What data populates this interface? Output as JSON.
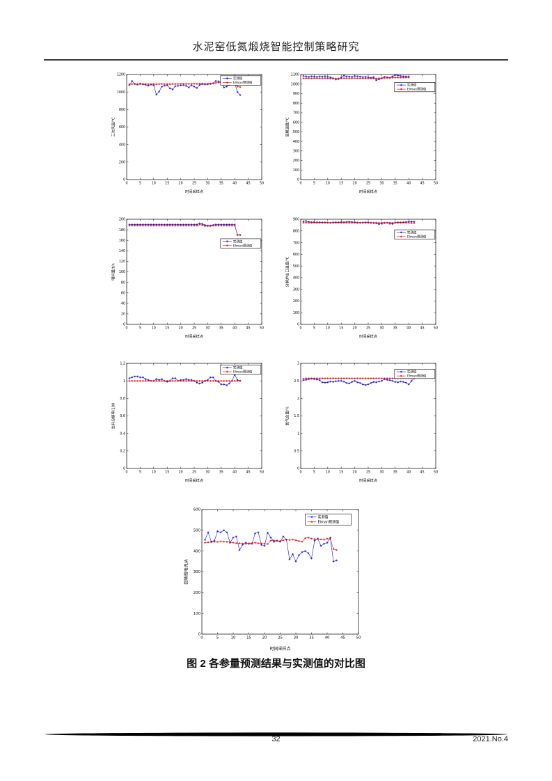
{
  "page": {
    "header_title": "水泥窑低氮煅烧智能控制策略研究",
    "caption": "图 2 各参量预测结果与实测值的对比图",
    "page_number": "32",
    "issue": "2021.No.4"
  },
  "colors": {
    "actual": "#0000ee",
    "predicted": "#ee0000",
    "axis": "#000000"
  },
  "chart_data": [
    {
      "type": "line",
      "name": "tertiary-air-temperature",
      "ylabel": "三次风温/℃",
      "xlabel": "时间采样点",
      "xlim": [
        0,
        50
      ],
      "xtick": 5,
      "ylim": [
        0,
        1200
      ],
      "ytick": 200,
      "grid": false,
      "legend_pos": [
        0.695,
        0.012
      ],
      "legend": [
        "实测值",
        "Elman预测值"
      ],
      "series": [
        {
          "name": "实测值",
          "color": "#0000ee",
          "values": [
            1080,
            1125,
            1090,
            1085,
            1095,
            1088,
            1082,
            1072,
            1085,
            1078,
            970,
            1005,
            1060,
            1072,
            1078,
            1042,
            1030,
            1066,
            1070,
            1076,
            1080,
            1070,
            1052,
            1076,
            1062,
            1046,
            1080,
            1090,
            1086,
            1088,
            1092,
            1100,
            1125,
            1122,
            1106,
            1052,
            1062,
            1082,
            1096,
            1102,
            1000,
            965
          ]
        },
        {
          "name": "Elman预测值",
          "color": "#ee0000",
          "values": [
            1088,
            1090,
            1092,
            1090,
            1090,
            1091,
            1090,
            1089,
            1090,
            1090,
            1088,
            1090,
            1091,
            1090,
            1090,
            1089,
            1090,
            1090,
            1091,
            1092,
            1093,
            1092,
            1092,
            1093,
            1094,
            1093,
            1094,
            1095,
            1094,
            1095,
            1096,
            1098,
            1104,
            1108,
            1106,
            1100,
            1098,
            1100,
            1102,
            1104,
            1062,
            1056
          ]
        }
      ]
    },
    {
      "type": "line",
      "name": "kiln-tail-temperature",
      "ylabel": "窑尾温度/℃",
      "xlabel": "时间采样点",
      "xlim": [
        0,
        50
      ],
      "xtick": 5,
      "ylim": [
        0,
        1100
      ],
      "ytick": 100,
      "grid": false,
      "legend_pos": [
        0.695,
        0.075
      ],
      "legend": [
        "实测值",
        "Elman预测值"
      ],
      "series": [
        {
          "name": "实测值",
          "color": "#0000ee",
          "values": [
            1085,
            1080,
            1076,
            1082,
            1078,
            1075,
            1080,
            1078,
            1082,
            1075,
            1070,
            1060,
            1048,
            1052,
            1070,
            1088,
            1080,
            1078,
            1075,
            1085,
            1082,
            1078,
            1072,
            1075,
            1070,
            1065,
            1072,
            1040,
            1050,
            1060,
            1075,
            1070,
            1065,
            1080,
            1095,
            1090,
            1085,
            1082,
            1080,
            1078
          ]
        },
        {
          "name": "Elman预测值",
          "color": "#ee0000",
          "values": [
            1060,
            1062,
            1061,
            1060,
            1062,
            1061,
            1060,
            1061,
            1062,
            1060,
            1058,
            1057,
            1056,
            1058,
            1060,
            1062,
            1061,
            1060,
            1061,
            1062,
            1061,
            1060,
            1059,
            1060,
            1059,
            1058,
            1059,
            1058,
            1060,
            1062,
            1063,
            1064,
            1065,
            1066,
            1068,
            1068,
            1067,
            1068,
            1068,
            1068
          ]
        }
      ]
    },
    {
      "type": "line",
      "name": "feed-rate",
      "ylabel": "喂料量/t/h",
      "xlabel": "时间采样点",
      "xlim": [
        0,
        50
      ],
      "xtick": 5,
      "ylim": [
        0,
        200
      ],
      "ytick": 20,
      "grid": false,
      "legend_pos": [
        0.695,
        0.185
      ],
      "legend": [
        "实测值",
        "Elman预测值"
      ],
      "series": [
        {
          "name": "实测值",
          "color": "#0000ee",
          "values": [
            190,
            190,
            190,
            190,
            190,
            190,
            190,
            190,
            190,
            190,
            190,
            190,
            190,
            190,
            190,
            190,
            190,
            190,
            190,
            190,
            190,
            190,
            190,
            190,
            190,
            190,
            192,
            191,
            189,
            188,
            188,
            189,
            190,
            190,
            190,
            190,
            190,
            190,
            190,
            190,
            170,
            170
          ]
        },
        {
          "name": "Elman预测值",
          "color": "#ee0000",
          "values": [
            188,
            188,
            188,
            188,
            188,
            188,
            188,
            188,
            188,
            188,
            188,
            188,
            188,
            188,
            188,
            188,
            188,
            188,
            188,
            188,
            188,
            188,
            188,
            188,
            188,
            188,
            190,
            189,
            187,
            187,
            187,
            188,
            188,
            188,
            188,
            188,
            188,
            188,
            188,
            188,
            170,
            170
          ]
        }
      ]
    },
    {
      "type": "line",
      "name": "calciner-outlet-temperature",
      "ylabel": "分解炉出口温度/℃",
      "xlabel": "时间采样点",
      "xlim": [
        0,
        50
      ],
      "xtick": 5,
      "ylim": [
        0,
        900
      ],
      "ytick": 100,
      "grid": false,
      "legend_pos": [
        0.695,
        0.1
      ],
      "legend": [
        "实测值",
        "Elman预测值"
      ],
      "series": [
        {
          "name": "实测值",
          "color": "#0000ee",
          "values": [
            882,
            885,
            878,
            875,
            876,
            874,
            875,
            873,
            874,
            872,
            870,
            873,
            875,
            874,
            876,
            875,
            877,
            878,
            876,
            875,
            872,
            870,
            872,
            874,
            873,
            870,
            868,
            866,
            858,
            862,
            868,
            870,
            862,
            860,
            872,
            874,
            873,
            875,
            876,
            878,
            880,
            878
          ]
        },
        {
          "name": "Elman预测值",
          "color": "#ee0000",
          "values": [
            870,
            871,
            870,
            870,
            871,
            870,
            870,
            870,
            871,
            870,
            869,
            870,
            870,
            871,
            870,
            870,
            871,
            870,
            870,
            870,
            869,
            870,
            870,
            871,
            870,
            869,
            870,
            870,
            869,
            870,
            871,
            870,
            870,
            869,
            870,
            871,
            870,
            870,
            871,
            870,
            868,
            868
          ]
        }
      ]
    },
    {
      "type": "line",
      "name": "raw-meal-decomposition-ratio",
      "ylabel": "生料分解率/100",
      "xlabel": "时间采样点",
      "xlim": [
        0,
        50
      ],
      "xtick": 5,
      "ylim": [
        0,
        1.2
      ],
      "ytick": 0.2,
      "grid": false,
      "legend_pos": [
        0.695,
        0.015
      ],
      "legend": [
        "实测值",
        "Elman预测值"
      ],
      "series": [
        {
          "name": "实测值",
          "color": "#0000ee",
          "values": [
            1.03,
            1.04,
            1.05,
            1.05,
            1.04,
            1.04,
            1.02,
            1.01,
            1.0,
            1.0,
            1.02,
            1.01,
            1.02,
            1.0,
            0.99,
            1.0,
            1.03,
            1.03,
            1.0,
            1.01,
            1.01,
            1.02,
            1.01,
            1.01,
            1.0,
            0.98,
            0.97,
            0.98,
            1.0,
            1.01,
            1.04,
            1.04,
            1.0,
            0.99,
            0.96,
            0.96,
            0.95,
            0.97,
            1.0,
            1.07,
            1.01,
            1.0
          ]
        },
        {
          "name": "Elman预测值",
          "color": "#ee0000",
          "values": [
            1.0,
            1.0,
            1.0,
            1.0,
            1.0,
            1.0,
            1.0,
            1.0,
            1.0,
            1.0,
            1.0,
            1.0,
            1.0,
            1.0,
            1.0,
            1.0,
            1.0,
            1.0,
            1.0,
            1.0,
            1.0,
            1.0,
            1.0,
            1.0,
            1.0,
            1.0,
            1.0,
            1.0,
            1.0,
            1.0,
            1.0,
            1.0,
            1.0,
            1.0,
            1.0,
            1.0,
            1.0,
            1.0,
            1.0,
            1.0,
            1.0,
            1.0
          ]
        }
      ]
    },
    {
      "type": "line",
      "name": "oxygen-content",
      "ylabel": "氧气含量/%",
      "xlabel": "时间采样点",
      "xlim": [
        0,
        50
      ],
      "xtick": 5,
      "ylim": [
        0,
        3
      ],
      "ytick": 0.5,
      "grid": false,
      "legend_pos": [
        0.695,
        0.055
      ],
      "legend": [
        "实测值",
        "Elman预测值"
      ],
      "series": [
        {
          "name": "实测值",
          "color": "#0000ee",
          "values": [
            2.52,
            2.53,
            2.55,
            2.56,
            2.55,
            2.54,
            2.52,
            2.46,
            2.45,
            2.46,
            2.48,
            2.47,
            2.49,
            2.5,
            2.5,
            2.48,
            2.44,
            2.43,
            2.47,
            2.5,
            2.46,
            2.44,
            2.4,
            2.38,
            2.4,
            2.44,
            2.47,
            2.46,
            2.48,
            2.5,
            2.55,
            2.53,
            2.52,
            2.5,
            2.47,
            2.46,
            2.48,
            2.47,
            2.45,
            2.4,
            2.5,
            2.57
          ]
        },
        {
          "name": "Elman预测值",
          "color": "#ee0000",
          "values": [
            2.56,
            2.57,
            2.57,
            2.57,
            2.57,
            2.57,
            2.57,
            2.57,
            2.57,
            2.57,
            2.57,
            2.57,
            2.57,
            2.57,
            2.57,
            2.57,
            2.57,
            2.57,
            2.57,
            2.57,
            2.57,
            2.57,
            2.57,
            2.57,
            2.57,
            2.57,
            2.57,
            2.57,
            2.57,
            2.57,
            2.57,
            2.57,
            2.57,
            2.57,
            2.57,
            2.57,
            2.57,
            2.57,
            2.57,
            2.57,
            2.57,
            2.57
          ]
        }
      ]
    },
    {
      "type": "line",
      "name": "rotary-kiln-current",
      "ylabel": "回转窑电流/A",
      "xlabel": "时间采样点",
      "xlim": [
        0,
        50
      ],
      "xtick": 5,
      "ylim": [
        0,
        600
      ],
      "ytick": 100,
      "grid": false,
      "legend_pos": [
        0.66,
        0.035
      ],
      "legend": [
        "实测值",
        "Elman预测值"
      ],
      "series": [
        {
          "name": "实测值",
          "color": "#0000ee",
          "values": [
            455,
            490,
            445,
            450,
            495,
            490,
            500,
            490,
            440,
            465,
            470,
            405,
            430,
            440,
            435,
            435,
            485,
            490,
            430,
            425,
            488,
            465,
            445,
            450,
            445,
            470,
            455,
            360,
            385,
            350,
            380,
            395,
            400,
            390,
            365,
            450,
            460,
            425,
            435,
            440,
            465,
            350,
            355
          ]
        },
        {
          "name": "Elman预测值",
          "color": "#ee0000",
          "values": [
            440,
            442,
            443,
            445,
            444,
            446,
            445,
            444,
            443,
            440,
            438,
            437,
            436,
            435,
            437,
            438,
            440,
            438,
            437,
            435,
            434,
            450,
            452,
            450,
            448,
            452,
            455,
            453,
            455,
            452,
            448,
            445,
            462,
            465,
            460,
            458,
            457,
            456,
            455,
            460,
            458,
            410,
            405
          ]
        }
      ]
    }
  ]
}
